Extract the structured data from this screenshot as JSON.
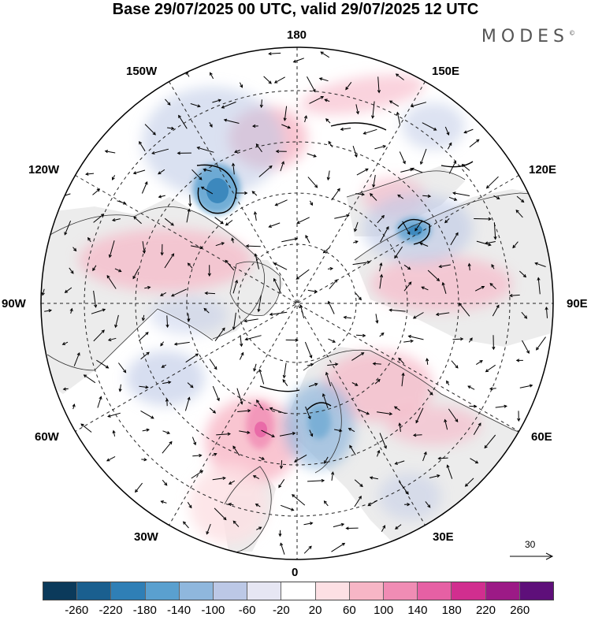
{
  "title": "Base 29/07/2025 00 UTC, valid 29/07/2025 12 UTC",
  "brand": "MODES",
  "brand_mark": "©",
  "longitude_labels": {
    "top": "180",
    "bottom": "0",
    "left": "90W",
    "right": "90E",
    "upper_left_1": "150W",
    "upper_left_2": "120W",
    "upper_right_1": "150E",
    "upper_right_2": "120E",
    "lower_left_1": "60W",
    "lower_left_2": "30W",
    "lower_right_1": "60E",
    "lower_right_2": "30E"
  },
  "reference_vector_label": "30",
  "colorbar": {
    "colors": [
      "#0b3a5b",
      "#1a5f8f",
      "#2f7fb6",
      "#5aa0cf",
      "#8fb7dd",
      "#bcc8e6",
      "#e6e6f3",
      "#ffffff",
      "#fde0e4",
      "#f7b6c6",
      "#f08cb4",
      "#e660a4",
      "#d12e8f",
      "#9c1a86",
      "#5e0f7a"
    ],
    "ticks": [
      "-260",
      "-220",
      "-180",
      "-140",
      "-100",
      "-60",
      "-20",
      "20",
      "60",
      "100",
      "140",
      "180",
      "220",
      "260"
    ]
  }
}
